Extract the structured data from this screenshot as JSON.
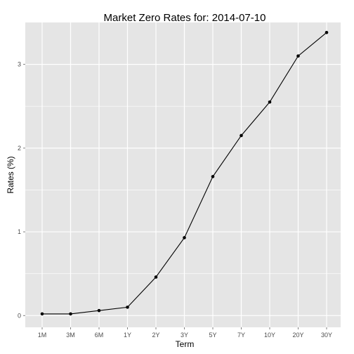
{
  "chart_data": {
    "type": "line",
    "title": "Market Zero Rates for: 2014-07-10",
    "xlabel": "Term",
    "ylabel": "Rates (%)",
    "categories": [
      "1M",
      "3M",
      "6M",
      "1Y",
      "2Y",
      "3Y",
      "5Y",
      "7Y",
      "10Y",
      "20Y",
      "30Y"
    ],
    "values": [
      0.02,
      0.02,
      0.06,
      0.1,
      0.46,
      0.93,
      1.66,
      2.15,
      2.55,
      3.1,
      3.38
    ],
    "ylim": [
      -0.14,
      3.5
    ],
    "yticks": [
      0,
      1,
      2,
      3
    ],
    "grid": true,
    "legend": "none",
    "colors": {
      "panel": "#e5e5e5",
      "grid": "#ffffff",
      "line": "#000000",
      "point": "#000000"
    }
  }
}
